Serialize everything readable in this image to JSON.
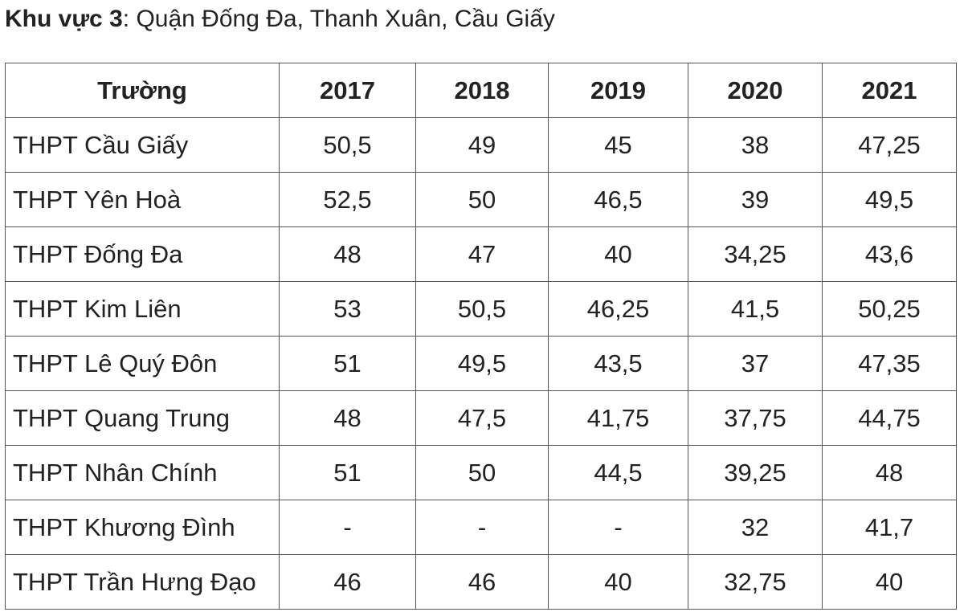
{
  "heading": {
    "label": "Khu vực 3",
    "separator": ":",
    "text": " Quận Đống Đa, Thanh Xuân, Cầu Giấy"
  },
  "table": {
    "headers": [
      "Trường",
      "2017",
      "2018",
      "2019",
      "2020",
      "2021"
    ],
    "rows": [
      [
        "THPT Cầu Giấy",
        "50,5",
        "49",
        "45",
        "38",
        "47,25"
      ],
      [
        "THPT Yên Hoà",
        "52,5",
        "50",
        "46,5",
        "39",
        "49,5"
      ],
      [
        "THPT Đống Đa",
        "48",
        "47",
        "40",
        "34,25",
        "43,6"
      ],
      [
        "THPT Kim Liên",
        "53",
        "50,5",
        "46,25",
        "41,5",
        "50,25"
      ],
      [
        "THPT Lê Quý Đôn",
        "51",
        "49,5",
        "43,5",
        "37",
        "47,35"
      ],
      [
        "THPT Quang Trung",
        "48",
        "47,5",
        "41,75",
        "37,75",
        "44,75"
      ],
      [
        "THPT Nhân Chính",
        "51",
        "50",
        "44,5",
        "39,25",
        "48"
      ],
      [
        "THPT Khương Đình",
        "-",
        "-",
        "-",
        "32",
        "41,7"
      ],
      [
        "THPT Trần Hưng Đạo",
        "46",
        "46",
        "40",
        "32,75",
        "40"
      ]
    ]
  }
}
